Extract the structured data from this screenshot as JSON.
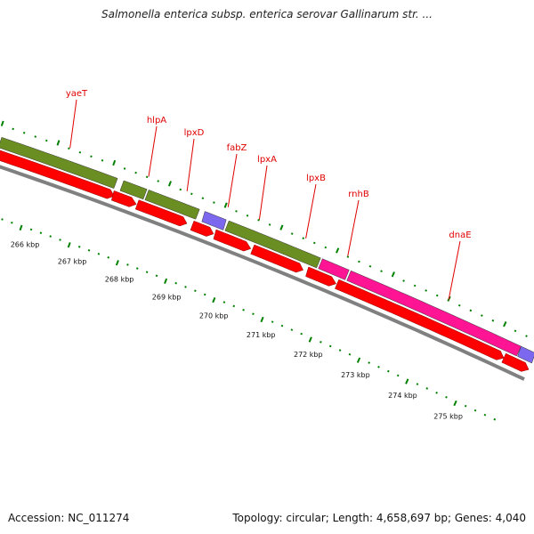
{
  "title": "Salmonella enterica subsp. enterica serovar Gallinarum str. ...",
  "footer": {
    "accession": "Accession: NC_011274",
    "summary": "Topology: circular; Length: 4,658,697 bp; Genes: 4,040"
  },
  "colors": {
    "green": "#6b8e23",
    "red": "#ff0000",
    "magenta": "#ff1493",
    "purple": "#7b68ee",
    "gray": "#808080",
    "tick": "#008000",
    "label": "#e00000"
  },
  "genes": [
    {
      "name": "yaeT",
      "color": "green"
    },
    {
      "name": "hlpA",
      "color": "green"
    },
    {
      "name": "lpxD",
      "color": "green"
    },
    {
      "name": "fabZ",
      "color": "purple"
    },
    {
      "name": "lpxA",
      "color": "green"
    },
    {
      "name": "lpxB",
      "color": "green"
    },
    {
      "name": "rnhB",
      "color": "magenta"
    },
    {
      "name": "dnaE",
      "color": "magenta"
    }
  ],
  "kbp_ticks": [
    "266 kbp",
    "267 kbp",
    "268 kbp",
    "269 kbp",
    "270 kbp",
    "271 kbp",
    "272 kbp",
    "273 kbp",
    "274 kbp",
    "275 kbp"
  ]
}
